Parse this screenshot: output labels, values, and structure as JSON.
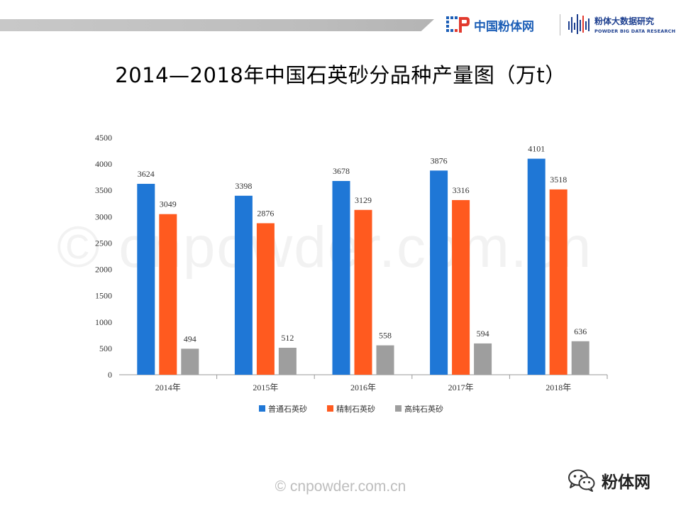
{
  "header": {
    "logo_primary": "中国粉体网",
    "logo_secondary_cn": "粉体大数据研究",
    "logo_secondary_en": "POWDER BIG DATA RESEARCH"
  },
  "title": "2014—2018年中国石英砂分品种产量图（万t）",
  "chart_data": {
    "type": "bar",
    "title": "",
    "xlabel": "",
    "ylabel": "",
    "categories": [
      "2014年",
      "2015年",
      "2016年",
      "2017年",
      "2018年"
    ],
    "series": [
      {
        "name": "普通石英砂",
        "color": "#1f77d6",
        "values": [
          3624,
          3398,
          3678,
          3876,
          4101
        ]
      },
      {
        "name": "精制石英砂",
        "color": "#ff5a1f",
        "values": [
          3049,
          2876,
          3129,
          3316,
          3518
        ]
      },
      {
        "name": "高纯石英砂",
        "color": "#9e9e9e",
        "values": [
          494,
          512,
          558,
          594,
          636
        ]
      }
    ],
    "yticks": [
      0,
      500,
      1000,
      1500,
      2000,
      2500,
      3000,
      3500,
      4000,
      4500
    ],
    "ylim": [
      0,
      4500
    ],
    "grid": false,
    "legend_position": "bottom"
  },
  "watermark": "© cnpowder.com.cn",
  "footer": "© cnpowder.com.cn",
  "wechat": {
    "icon": "wechat-icon",
    "name": "粉体网"
  }
}
